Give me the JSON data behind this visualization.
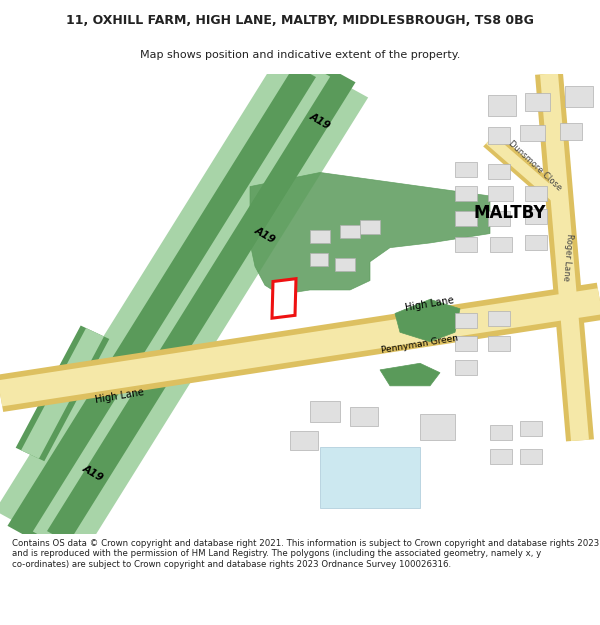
{
  "title": "11, OXHILL FARM, HIGH LANE, MALTBY, MIDDLESBROUGH, TS8 0BG",
  "subtitle": "Map shows position and indicative extent of the property.",
  "footer": "Contains OS data © Crown copyright and database right 2021. This information is subject to Crown copyright and database rights 2023 and is reproduced with the permission of HM Land Registry. The polygons (including the associated geometry, namely x, y co-ordinates) are subject to Crown copyright and database rights 2023 Ordnance Survey 100026316.",
  "bg_color": "#ffffff",
  "map_bg": "#f8f8f8",
  "road_yellow": "#f5e8a8",
  "road_yellow_border": "#ddc060",
  "road_green_dark": "#5a9a5a",
  "road_green_light": "#a8d4a8",
  "building_fill": "#e0e0e0",
  "building_stroke": "#b0b0b0",
  "plot_fill": "#ffffff",
  "plot_stroke": "#ee1111",
  "text_color": "#222222",
  "label_maltby": "MALTBY",
  "label_a19_1": "A19",
  "label_a19_2": "A19",
  "label_a19_3": "A19",
  "label_high_lane_1": "High Lane",
  "label_high_lane_2": "High Lane",
  "label_pennyman": "Pennyman Green",
  "label_dunsmore": "Dunsmore Close",
  "label_roger": "Roger Lane"
}
